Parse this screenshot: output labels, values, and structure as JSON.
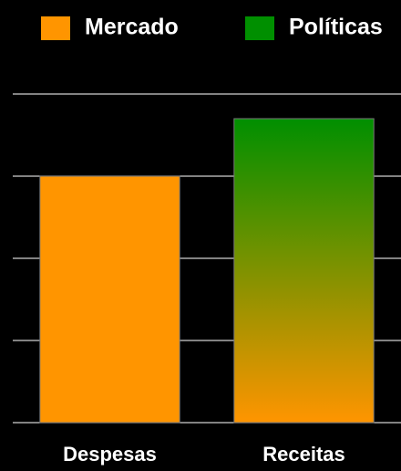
{
  "chart_data": {
    "type": "bar",
    "categories": [
      "Despesas",
      "Receitas"
    ],
    "series": [
      {
        "name": "Mercado",
        "color": "#ff9500",
        "values": [
          3,
          null
        ]
      },
      {
        "name": "Políticas",
        "color": "#008f00",
        "values": [
          null,
          3.7
        ]
      }
    ],
    "ylim": [
      0,
      4
    ],
    "yticks": [
      0,
      1,
      2,
      3,
      4
    ],
    "grid": true
  }
}
